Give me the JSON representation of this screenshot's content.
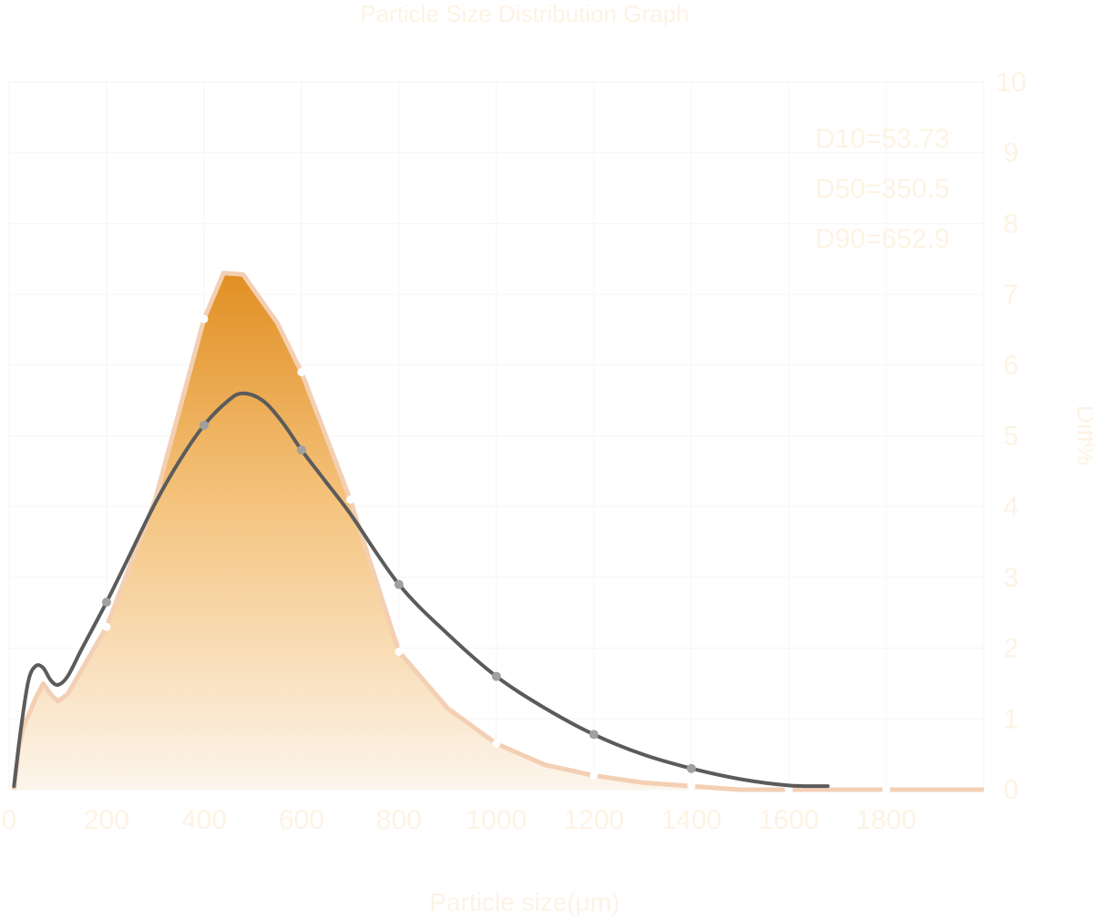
{
  "chart_data": {
    "type": "area",
    "title": "Particle Size Distribution Graph",
    "xlabel": "Particle size(μm)",
    "ylabel": "Diff%",
    "xlim": [
      0,
      2000
    ],
    "ylim": [
      0,
      10
    ],
    "x_ticks": [
      "0",
      "200",
      "400",
      "600",
      "800",
      "1000",
      "1200",
      "1400",
      "1600",
      "1800"
    ],
    "y_ticks": [
      "0",
      "1",
      "2",
      "3",
      "4",
      "5",
      "6",
      "7",
      "8",
      "9",
      "10"
    ],
    "grid": true,
    "stats": [
      "D10=53.73",
      "D50=350.5",
      "D90=652.9"
    ],
    "series": [
      {
        "style": "filled area",
        "color": "#e4982f",
        "outline_color": "#f3cfb4",
        "x": [
          10,
          20,
          30,
          55,
          70,
          85,
          100,
          120,
          200,
          300,
          400,
          440,
          480,
          550,
          600,
          700,
          800,
          900,
          1000,
          1100,
          1200,
          1300,
          1400,
          1500,
          1600,
          1700,
          1800,
          1900,
          2000
        ],
        "y": [
          0.0,
          0.6,
          0.9,
          1.3,
          1.5,
          1.35,
          1.25,
          1.35,
          2.3,
          4.1,
          6.65,
          7.3,
          7.28,
          6.6,
          5.9,
          4.1,
          1.95,
          1.15,
          0.65,
          0.35,
          0.2,
          0.1,
          0.05,
          0.0,
          0.0,
          0.0,
          0.0,
          0.0,
          0.0
        ],
        "markers_x": [
          200,
          400,
          600,
          700,
          800,
          1000,
          1200,
          1400,
          1600,
          1800
        ],
        "markers_y": [
          2.3,
          6.65,
          5.9,
          4.1,
          1.95,
          0.65,
          0.2,
          0.05,
          0.0,
          0.0
        ]
      },
      {
        "style": "line",
        "color": "#5b5b5b",
        "x": [
          10,
          25,
          40,
          55,
          70,
          85,
          100,
          120,
          150,
          200,
          250,
          300,
          350,
          400,
          450,
          480,
          520,
          560,
          600,
          650,
          700,
          800,
          900,
          1000,
          1100,
          1200,
          1300,
          1400,
          1500,
          1600,
          1680
        ],
        "y": [
          0.05,
          0.9,
          1.55,
          1.75,
          1.72,
          1.55,
          1.48,
          1.6,
          2.0,
          2.65,
          3.35,
          4.05,
          4.65,
          5.15,
          5.5,
          5.6,
          5.5,
          5.2,
          4.8,
          4.35,
          3.9,
          2.9,
          2.2,
          1.6,
          1.15,
          0.78,
          0.5,
          0.3,
          0.15,
          0.06,
          0.05
        ],
        "markers_x": [
          200,
          400,
          600,
          800,
          1000,
          1200,
          1400
        ],
        "markers_y": [
          2.65,
          5.15,
          4.8,
          2.9,
          1.6,
          0.78,
          0.3
        ]
      }
    ]
  }
}
